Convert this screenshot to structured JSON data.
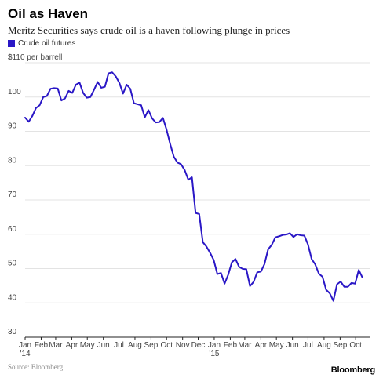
{
  "title": "Oil as Haven",
  "subtitle": "Meritz Securities says crude oil is a haven following plunge in prices",
  "source": "Source: Bloomberg",
  "brand": "Bloomberg",
  "colors": {
    "line": "#2a17c6",
    "grid": "#e3e3e3",
    "axis": "#222222",
    "text": "#444444"
  },
  "chart_data": {
    "type": "line",
    "title": "Oil as Haven",
    "subtitle": "Meritz Securities says crude oil is a haven following plunge in prices",
    "ylabel_unit": "$110 per barrell",
    "ylim": [
      30,
      110
    ],
    "yticks": [
      {
        "value": 110,
        "label": "$110 per barrell"
      },
      {
        "value": 100,
        "label": "100"
      },
      {
        "value": 90,
        "label": "90"
      },
      {
        "value": 80,
        "label": "80"
      },
      {
        "value": 70,
        "label": "70"
      },
      {
        "value": 60,
        "label": "60"
      },
      {
        "value": 50,
        "label": "50"
      },
      {
        "value": 40,
        "label": "40"
      },
      {
        "value": 30,
        "label": "30"
      }
    ],
    "xlim": [
      "2014-01-01",
      "2015-10-28"
    ],
    "xticks": [
      {
        "date": "2014-01-01",
        "label": "Jan",
        "sublabel": "'14"
      },
      {
        "date": "2014-02-01",
        "label": "Feb"
      },
      {
        "date": "2014-03-01",
        "label": "Mar"
      },
      {
        "date": "2014-04-01",
        "label": "Apr"
      },
      {
        "date": "2014-05-01",
        "label": "May"
      },
      {
        "date": "2014-06-01",
        "label": "Jun"
      },
      {
        "date": "2014-07-01",
        "label": "Jul"
      },
      {
        "date": "2014-08-01",
        "label": "Aug"
      },
      {
        "date": "2014-09-01",
        "label": "Sep"
      },
      {
        "date": "2014-10-01",
        "label": "Oct"
      },
      {
        "date": "2014-11-01",
        "label": "Nov"
      },
      {
        "date": "2014-12-01",
        "label": "Dec"
      },
      {
        "date": "2015-01-01",
        "label": "Jan",
        "sublabel": "'15"
      },
      {
        "date": "2015-02-01",
        "label": "Feb"
      },
      {
        "date": "2015-03-01",
        "label": "Mar"
      },
      {
        "date": "2015-04-01",
        "label": "Apr"
      },
      {
        "date": "2015-05-01",
        "label": "May"
      },
      {
        "date": "2015-06-01",
        "label": "Jun"
      },
      {
        "date": "2015-07-01",
        "label": "Jul"
      },
      {
        "date": "2015-08-01",
        "label": "Aug"
      },
      {
        "date": "2015-09-01",
        "label": "Sep"
      },
      {
        "date": "2015-10-01",
        "label": "Oct"
      }
    ],
    "grid": true,
    "legend": "top-left",
    "series": [
      {
        "name": "Crude oil futures",
        "color": "#2a17c6",
        "points": [
          [
            "2014-01-01",
            94.0
          ],
          [
            "2014-01-08",
            92.8
          ],
          [
            "2014-01-15",
            94.5
          ],
          [
            "2014-01-22",
            96.8
          ],
          [
            "2014-01-29",
            97.6
          ],
          [
            "2014-02-05",
            100.0
          ],
          [
            "2014-02-12",
            100.3
          ],
          [
            "2014-02-19",
            102.4
          ],
          [
            "2014-02-26",
            102.6
          ],
          [
            "2014-03-05",
            102.5
          ],
          [
            "2014-03-12",
            99.0
          ],
          [
            "2014-03-19",
            99.6
          ],
          [
            "2014-03-26",
            101.8
          ],
          [
            "2014-04-02",
            101.2
          ],
          [
            "2014-04-09",
            103.6
          ],
          [
            "2014-04-16",
            104.2
          ],
          [
            "2014-04-23",
            101.2
          ],
          [
            "2014-04-30",
            99.8
          ],
          [
            "2014-05-07",
            100.0
          ],
          [
            "2014-05-14",
            102.1
          ],
          [
            "2014-05-21",
            104.4
          ],
          [
            "2014-05-28",
            102.7
          ],
          [
            "2014-06-04",
            103.0
          ],
          [
            "2014-06-11",
            106.9
          ],
          [
            "2014-06-18",
            107.2
          ],
          [
            "2014-06-25",
            106.0
          ],
          [
            "2014-07-02",
            104.1
          ],
          [
            "2014-07-09",
            101.0
          ],
          [
            "2014-07-16",
            103.6
          ],
          [
            "2014-07-23",
            102.4
          ],
          [
            "2014-07-30",
            98.2
          ],
          [
            "2014-08-06",
            97.9
          ],
          [
            "2014-08-13",
            97.6
          ],
          [
            "2014-08-20",
            94.1
          ],
          [
            "2014-08-27",
            96.2
          ],
          [
            "2014-09-03",
            93.8
          ],
          [
            "2014-09-10",
            92.6
          ],
          [
            "2014-09-17",
            92.7
          ],
          [
            "2014-09-24",
            93.9
          ],
          [
            "2014-10-01",
            90.5
          ],
          [
            "2014-10-08",
            86.3
          ],
          [
            "2014-10-15",
            82.6
          ],
          [
            "2014-10-22",
            80.9
          ],
          [
            "2014-10-29",
            80.4
          ],
          [
            "2014-11-05",
            78.7
          ],
          [
            "2014-11-12",
            75.9
          ],
          [
            "2014-11-19",
            76.6
          ],
          [
            "2014-11-26",
            66.2
          ],
          [
            "2014-12-03",
            65.9
          ],
          [
            "2014-12-10",
            57.7
          ],
          [
            "2014-12-17",
            56.4
          ],
          [
            "2014-12-24",
            54.6
          ],
          [
            "2014-12-31",
            52.5
          ],
          [
            "2015-01-07",
            48.4
          ],
          [
            "2015-01-14",
            48.7
          ],
          [
            "2015-01-21",
            45.6
          ],
          [
            "2015-01-28",
            48.2
          ],
          [
            "2015-02-04",
            51.8
          ],
          [
            "2015-02-11",
            52.8
          ],
          [
            "2015-02-18",
            50.5
          ],
          [
            "2015-02-25",
            49.9
          ],
          [
            "2015-03-04",
            49.8
          ],
          [
            "2015-03-11",
            44.9
          ],
          [
            "2015-03-18",
            46.1
          ],
          [
            "2015-03-25",
            48.9
          ],
          [
            "2015-04-01",
            49.1
          ],
          [
            "2015-04-08",
            51.3
          ],
          [
            "2015-04-15",
            55.6
          ],
          [
            "2015-04-22",
            56.9
          ],
          [
            "2015-04-29",
            59.1
          ],
          [
            "2015-05-06",
            59.4
          ],
          [
            "2015-05-13",
            59.8
          ],
          [
            "2015-05-20",
            59.9
          ],
          [
            "2015-05-27",
            60.3
          ],
          [
            "2015-06-03",
            59.2
          ],
          [
            "2015-06-10",
            60.0
          ],
          [
            "2015-06-17",
            59.7
          ],
          [
            "2015-06-24",
            59.6
          ],
          [
            "2015-07-01",
            57.0
          ],
          [
            "2015-07-08",
            52.8
          ],
          [
            "2015-07-15",
            51.2
          ],
          [
            "2015-07-22",
            48.5
          ],
          [
            "2015-07-29",
            47.6
          ],
          [
            "2015-08-05",
            43.8
          ],
          [
            "2015-08-12",
            42.8
          ],
          [
            "2015-08-19",
            40.6
          ],
          [
            "2015-08-26",
            45.4
          ],
          [
            "2015-09-02",
            46.2
          ],
          [
            "2015-09-09",
            44.7
          ],
          [
            "2015-09-16",
            44.7
          ],
          [
            "2015-09-23",
            45.8
          ],
          [
            "2015-09-30",
            45.6
          ],
          [
            "2015-10-07",
            49.6
          ],
          [
            "2015-10-14",
            47.4
          ]
        ]
      }
    ]
  }
}
